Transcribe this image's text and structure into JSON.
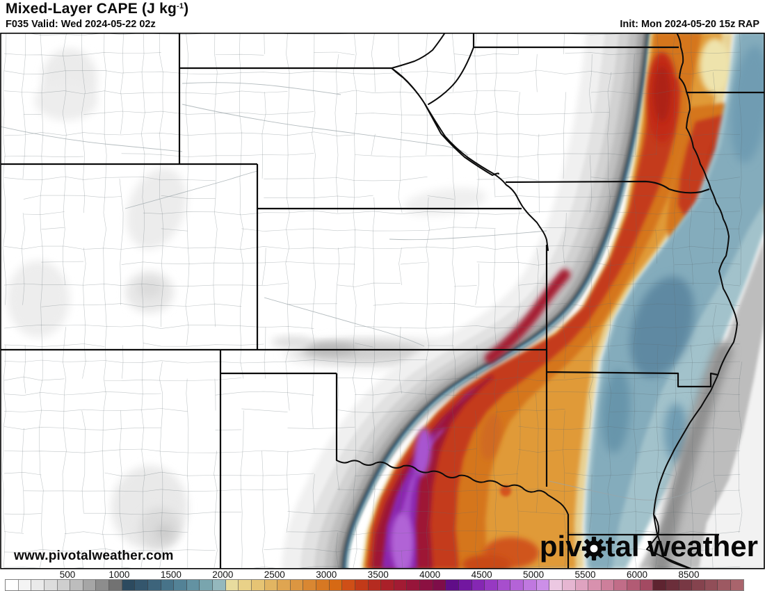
{
  "header": {
    "title_prefix": "Mixed-Layer CAPE (J kg",
    "title_sup": "-1",
    "title_suffix": ")",
    "subtitle": "F035 Valid: Wed 2024-05-22 02z",
    "init": "Init: Mon 2024-05-20 15z RAP"
  },
  "watermark": {
    "site_url": "www.pivotalweather.com",
    "logo_pre": "piv",
    "logo_post": "tal weather",
    "gear_icon": "gear-icon"
  },
  "colorbar": {
    "labels": [
      "500",
      "1000",
      "1500",
      "2000",
      "2500",
      "3000",
      "3500",
      "4000",
      "4500",
      "5000",
      "5500",
      "6000",
      "8500"
    ],
    "colors": [
      "#ffffff",
      "#f4f4f4",
      "#eaeaea",
      "#dddddd",
      "#cfcfcf",
      "#bdbdbd",
      "#a6a6a6",
      "#8d8d8d",
      "#727272",
      "#2c4a5f",
      "#34566d",
      "#3d647b",
      "#477389",
      "#538296",
      "#6392a2",
      "#79a5ae",
      "#94b8bd",
      "#e8dc9e",
      "#e9d188",
      "#e6c474",
      "#e2b562",
      "#dfa551",
      "#dc9641",
      "#d98732",
      "#d77823",
      "#d66914",
      "#cf4f17",
      "#c23a19",
      "#b52b20",
      "#aa2029",
      "#a21b33",
      "#97153a",
      "#8b1041",
      "#7e0d49",
      "#600d88",
      "#7217a0",
      "#8527b3",
      "#9739c2",
      "#a74ecd",
      "#b463d7",
      "#c078e0",
      "#cc8fe8",
      "#ecc8e2",
      "#e6b6d2",
      "#dfa3c0",
      "#d891ae",
      "#cd7f9b",
      "#c16d88",
      "#b25b74",
      "#a34a62",
      "#5e2430",
      "#6b2e3a",
      "#783844",
      "#85434e",
      "#914e58",
      "#9d5962",
      "#a9646c"
    ]
  },
  "map": {
    "background": "#ffffff",
    "county_line_color": "#5f6b70",
    "state_line_color": "#0b0b0b",
    "palette": {
      "gray_band": "#a4a4a4",
      "edge_slate": "#49565e",
      "edge_blue": "#3f6a85",
      "tan": "#e8d295",
      "orange": "#e09a38",
      "deep_orange": "#d5761c",
      "red": "#c43a1c",
      "maroon": "#9e1734",
      "purple": "#8b27ae",
      "bright_purple": "#a04ac9",
      "east_blue": "#a2c2cb",
      "east_blue_mid": "#84acbc",
      "east_gray": "#bdbdbd"
    }
  }
}
